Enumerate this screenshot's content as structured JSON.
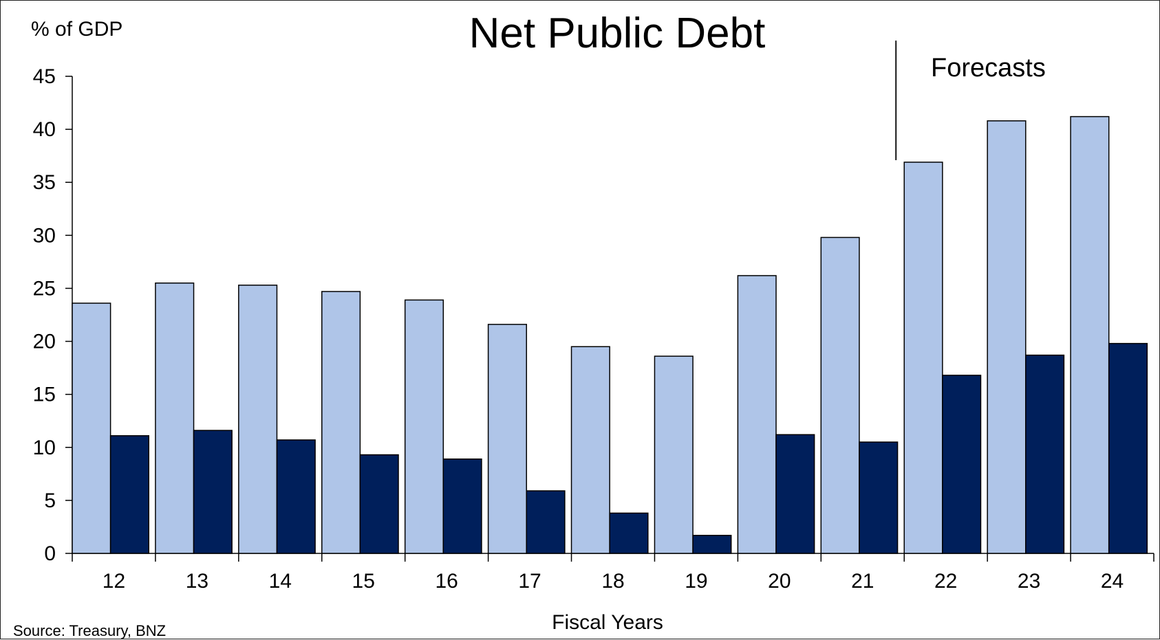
{
  "chart_data": {
    "type": "bar",
    "title": "Net Public Debt",
    "ylabel": "% of GDP",
    "xlabel": "Fiscal Years",
    "source": "Source: Treasury, BNZ",
    "annotation": "Forecasts",
    "forecast_start_category": "22",
    "ylim": [
      0,
      45
    ],
    "yticks": [
      0,
      5,
      10,
      15,
      20,
      25,
      30,
      35,
      40,
      45
    ],
    "categories": [
      "12",
      "13",
      "14",
      "15",
      "16",
      "17",
      "18",
      "19",
      "20",
      "21",
      "22",
      "23",
      "24"
    ],
    "series": [
      {
        "color": "#AFC5E8",
        "values": [
          23.6,
          25.5,
          25.3,
          24.7,
          23.9,
          21.6,
          19.5,
          18.6,
          26.2,
          29.8,
          36.9,
          40.8,
          41.2
        ]
      },
      {
        "color": "#001F5B",
        "values": [
          11.1,
          11.6,
          10.7,
          9.3,
          8.9,
          5.9,
          3.8,
          1.7,
          11.2,
          10.5,
          16.8,
          18.7,
          19.8
        ]
      }
    ],
    "grid": false,
    "legend": "none"
  }
}
